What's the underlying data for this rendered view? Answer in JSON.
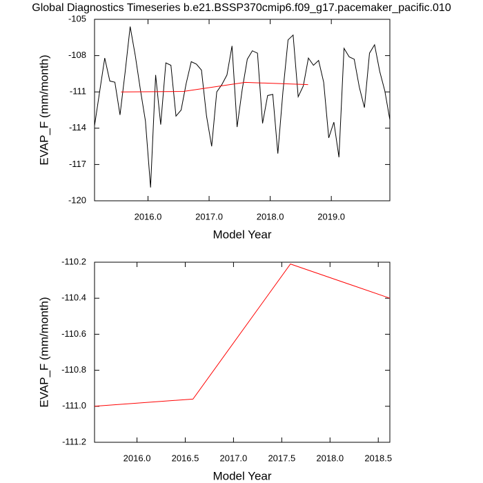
{
  "chart_data": [
    {
      "type": "line",
      "title": "Global Diagnostics Timeseries b.e21.BSSP370cmip6.f09_g17.pacemaker_pacific.010",
      "xlabel": "Model Year",
      "ylabel": "EVAP_F (mm/month)",
      "xlim": [
        2015.125,
        2019.958
      ],
      "ylim": [
        -120,
        -105
      ],
      "xticks": [
        {
          "value": 2016,
          "label": "2016.0"
        },
        {
          "value": 2017,
          "label": "2017.0"
        },
        {
          "value": 2018,
          "label": "2018.0"
        },
        {
          "value": 2019,
          "label": "2019.0"
        }
      ],
      "yticks": [
        -120,
        -117,
        -114,
        -111,
        -108,
        -105
      ],
      "series": [
        {
          "color": "#000000",
          "x": [
            2015.125,
            2015.208,
            2015.292,
            2015.375,
            2015.458,
            2015.542,
            2015.625,
            2015.708,
            2015.792,
            2015.875,
            2015.958,
            2016.042,
            2016.125,
            2016.208,
            2016.292,
            2016.375,
            2016.458,
            2016.542,
            2016.625,
            2016.708,
            2016.792,
            2016.875,
            2016.958,
            2017.042,
            2017.125,
            2017.208,
            2017.292,
            2017.375,
            2017.458,
            2017.542,
            2017.625,
            2017.708,
            2017.792,
            2017.875,
            2017.958,
            2018.042,
            2018.125,
            2018.208,
            2018.292,
            2018.375,
            2018.458,
            2018.542,
            2018.625,
            2018.708,
            2018.792,
            2018.875,
            2018.958,
            2019.042,
            2019.125,
            2019.208,
            2019.292,
            2019.375,
            2019.458,
            2019.542,
            2019.625,
            2019.708,
            2019.792,
            2019.875,
            2019.958
          ],
          "values": [
            -113.8,
            -111.0,
            -108.2,
            -110.1,
            -110.2,
            -112.9,
            -109.4,
            -105.6,
            -108.0,
            -110.8,
            -113.4,
            -118.9,
            -109.6,
            -113.7,
            -108.6,
            -108.8,
            -113.0,
            -112.5,
            -110.3,
            -108.5,
            -108.7,
            -109.2,
            -113.0,
            -115.5,
            -111.0,
            -110.4,
            -109.6,
            -107.2,
            -113.9,
            -110.8,
            -108.3,
            -107.6,
            -107.8,
            -113.6,
            -111.3,
            -111.2,
            -116.1,
            -111.0,
            -106.7,
            -106.3,
            -111.4,
            -110.5,
            -108.2,
            -108.8,
            -108.4,
            -110.2,
            -114.8,
            -113.5,
            -116.4,
            -107.4,
            -108.1,
            -108.3,
            -110.6,
            -112.3,
            -107.8,
            -107.1,
            -109.3,
            -110.9,
            -113.3
          ]
        },
        {
          "color": "#ff0000",
          "x": [
            2015.56,
            2016.58,
            2017.59,
            2018.62
          ],
          "values": [
            -111.0,
            -110.96,
            -110.21,
            -110.4
          ]
        }
      ]
    },
    {
      "type": "line",
      "xlabel": "Model Year",
      "ylabel": "EVAP_F (mm/month)",
      "xlim": [
        2015.56,
        2018.62
      ],
      "ylim": [
        -111.2,
        -110.2
      ],
      "xticks": [
        {
          "value": 2016,
          "label": "2016.0"
        },
        2016.5,
        {
          "value": 2017,
          "label": "2017.0"
        },
        2017.5,
        {
          "value": 2018,
          "label": "2018.0"
        },
        2018.5
      ],
      "yticks": [
        -111.2,
        {
          "value": -111,
          "label": "-111.0"
        },
        -110.8,
        -110.6,
        -110.4,
        -110.2
      ],
      "series": [
        {
          "color": "#ff0000",
          "x": [
            2015.56,
            2016.58,
            2017.59,
            2018.62
          ],
          "values": [
            -111.0,
            -110.96,
            -110.21,
            -110.4
          ]
        }
      ]
    }
  ]
}
